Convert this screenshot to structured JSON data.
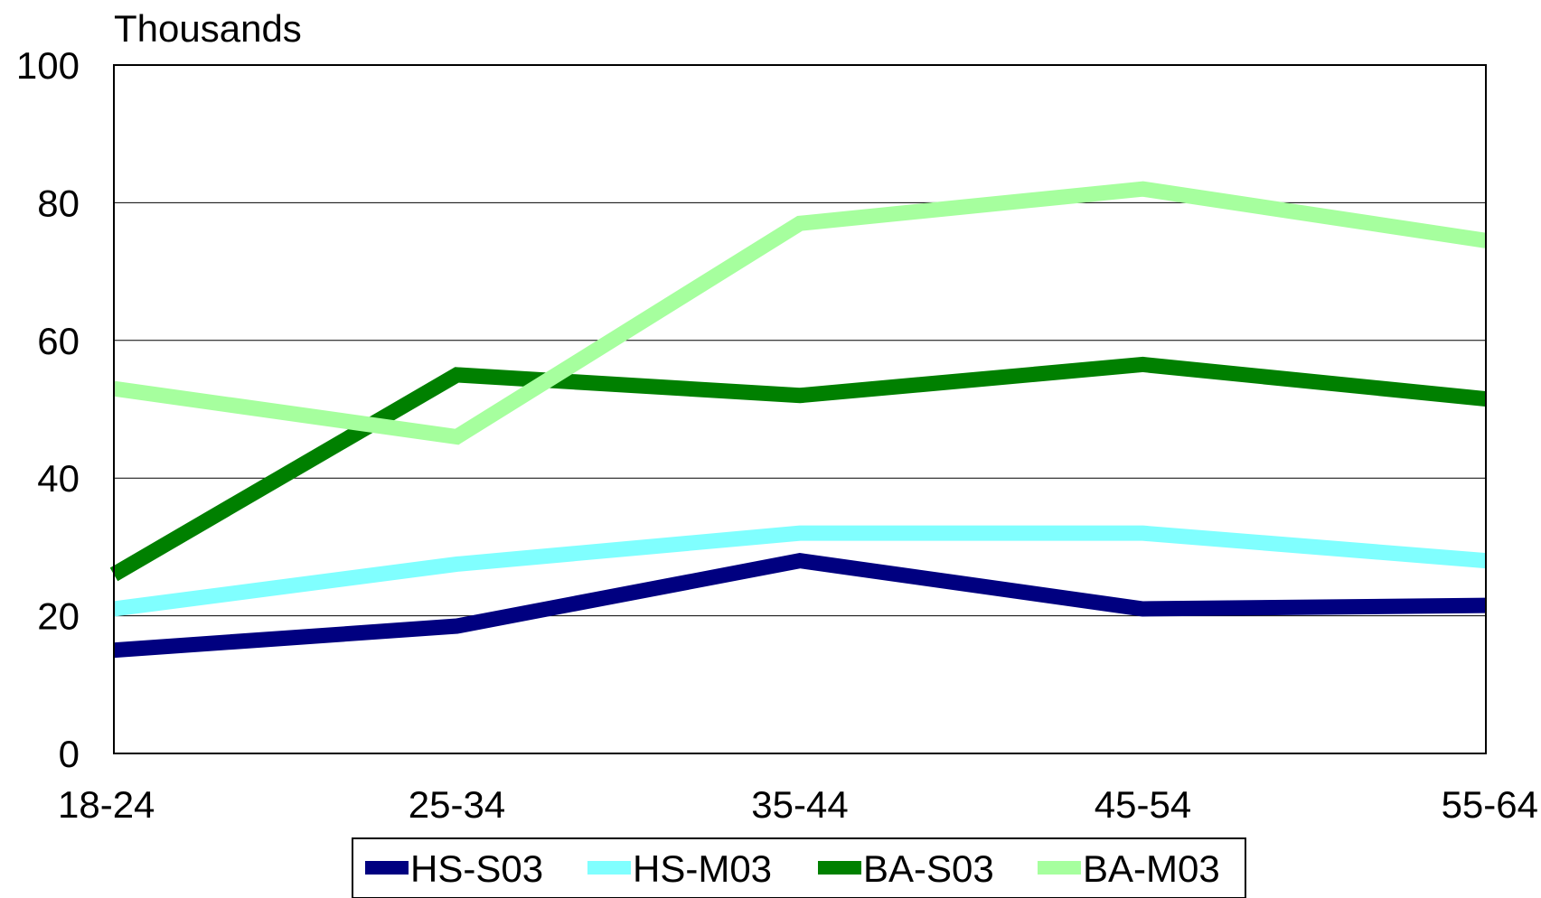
{
  "chart_data": {
    "type": "line",
    "unit_label": "Thousands",
    "categories": [
      "18-24",
      "25-34",
      "35-44",
      "45-54",
      "55-64"
    ],
    "ylim": [
      0,
      100
    ],
    "yticks": [
      "0",
      "20",
      "40",
      "60",
      "80",
      "100"
    ],
    "grid": true,
    "legend_position": "bottom",
    "series": [
      {
        "name": "HS-S03",
        "color": "#000080",
        "values": [
          15,
          18.5,
          28,
          21,
          21.5
        ]
      },
      {
        "name": "HS-M03",
        "color": "#80ffff",
        "values": [
          21,
          27.5,
          32,
          32,
          28
        ]
      },
      {
        "name": "BA-S03",
        "color": "#008000",
        "values": [
          26,
          55,
          52,
          56.5,
          51.5
        ]
      },
      {
        "name": "BA-M03",
        "color": "#a6ff9e",
        "values": [
          53,
          46,
          77,
          82,
          74.5
        ]
      }
    ]
  }
}
